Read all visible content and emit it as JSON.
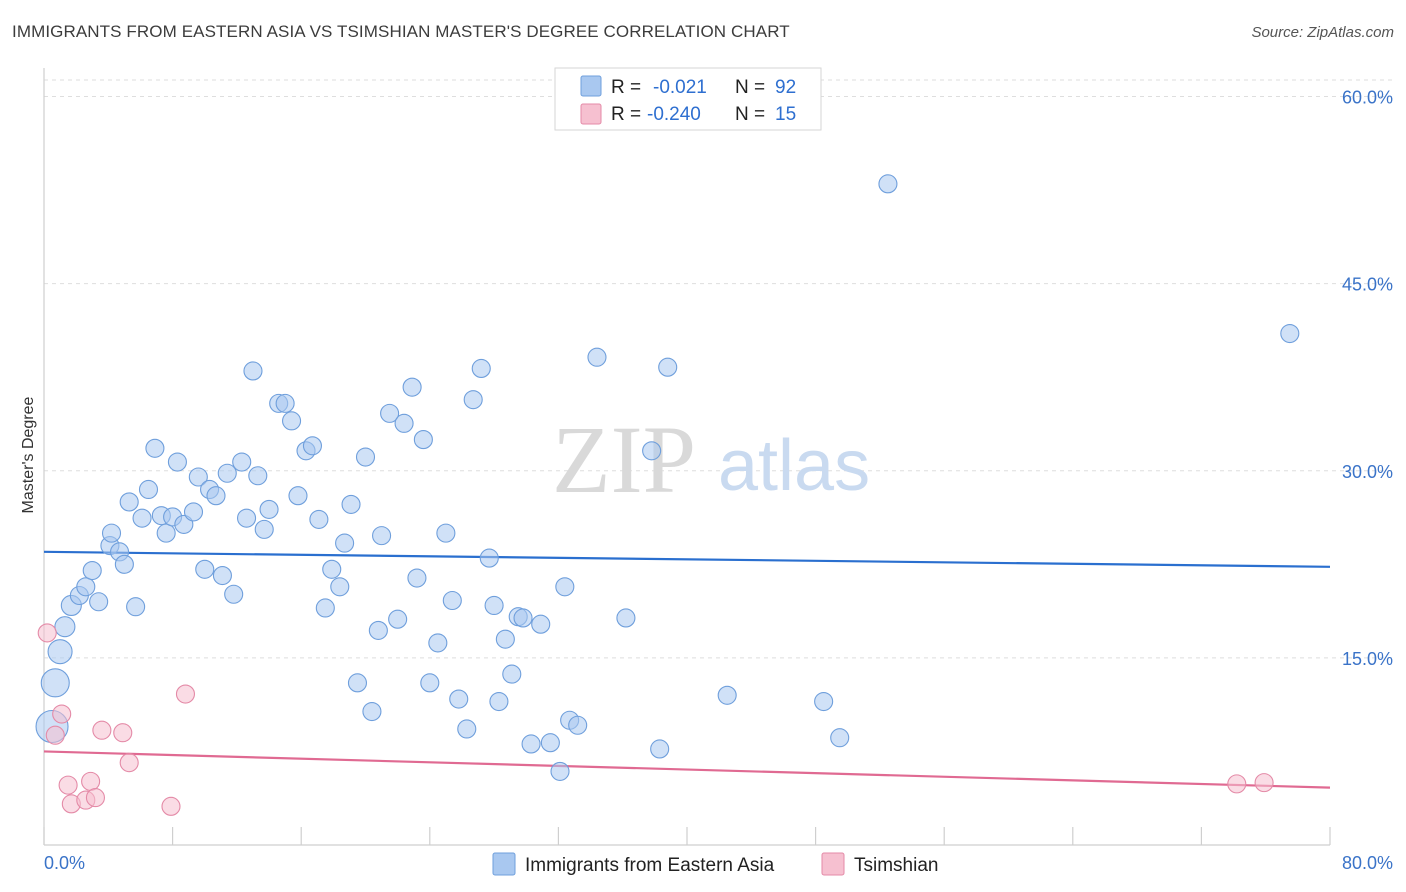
{
  "title": "IMMIGRANTS FROM EASTERN ASIA VS TSIMSHIAN MASTER'S DEGREE CORRELATION CHART",
  "source": "Source: ZipAtlas.com",
  "watermark": {
    "zip": "ZIP",
    "atlas": "atlas"
  },
  "legend_top": [
    {
      "r_label": "R =",
      "r_value": "-0.021",
      "n_label": "N =",
      "n_value": "92",
      "color": "#a9c8f0",
      "stroke": "#6f9fdc"
    },
    {
      "r_label": "R =",
      "r_value": "-0.240",
      "n_label": "N =",
      "n_value": "15",
      "color": "#f6c0d0",
      "stroke": "#e48aa7"
    }
  ],
  "chart_data": {
    "type": "scatter",
    "title": "IMMIGRANTS FROM EASTERN ASIA VS TSIMSHIAN MASTER'S DEGREE CORRELATION CHART",
    "xlabel": "",
    "ylabel": "Master's Degree",
    "xlim": [
      0,
      80
    ],
    "ylim": [
      0,
      60
    ],
    "x_tick_labels": [
      "0.0%",
      "80.0%"
    ],
    "y_ticks": [
      15,
      30,
      45,
      60
    ],
    "y_tick_labels": [
      "15.0%",
      "30.0%",
      "45.0%",
      "60.0%"
    ],
    "grid": true,
    "legend_position": "top-center",
    "series": [
      {
        "name": "Immigrants from Eastern Asia",
        "color": "#a9c8f0",
        "stroke": "#6f9fdc",
        "trend": {
          "x": [
            0,
            80
          ],
          "y": [
            23.5,
            22.3
          ],
          "color": "#2a6fcf"
        },
        "points": [
          [
            0.5,
            9.5,
            16
          ],
          [
            0.7,
            13.0,
            14
          ],
          [
            1.0,
            15.5,
            12
          ],
          [
            1.3,
            17.5,
            10
          ],
          [
            1.7,
            19.2,
            10
          ],
          [
            2.2,
            20.0,
            9
          ],
          [
            2.6,
            20.7,
            9
          ],
          [
            3.0,
            22.0,
            9
          ],
          [
            3.4,
            19.5,
            9
          ],
          [
            4.1,
            24.0,
            9
          ],
          [
            4.2,
            25.0,
            9
          ],
          [
            4.7,
            23.5,
            9
          ],
          [
            5.0,
            22.5,
            9
          ],
          [
            5.3,
            27.5,
            9
          ],
          [
            5.7,
            19.1,
            9
          ],
          [
            6.1,
            26.2,
            9
          ],
          [
            6.5,
            28.5,
            9
          ],
          [
            6.9,
            31.8,
            9
          ],
          [
            7.3,
            26.4,
            9
          ],
          [
            7.6,
            25.0,
            9
          ],
          [
            8.0,
            26.3,
            9
          ],
          [
            8.3,
            30.7,
            9
          ],
          [
            8.7,
            25.7,
            9
          ],
          [
            9.3,
            26.7,
            9
          ],
          [
            9.6,
            29.5,
            9
          ],
          [
            10.0,
            22.1,
            9
          ],
          [
            10.3,
            28.5,
            9
          ],
          [
            10.7,
            28.0,
            9
          ],
          [
            11.1,
            21.6,
            9
          ],
          [
            11.4,
            29.8,
            9
          ],
          [
            11.8,
            20.1,
            9
          ],
          [
            12.3,
            30.7,
            9
          ],
          [
            12.6,
            26.2,
            9
          ],
          [
            13.0,
            38.0,
            9
          ],
          [
            13.3,
            29.6,
            9
          ],
          [
            13.7,
            25.3,
            9
          ],
          [
            14.0,
            26.9,
            9
          ],
          [
            14.6,
            35.4,
            9
          ],
          [
            15.0,
            35.4,
            9
          ],
          [
            15.4,
            34.0,
            9
          ],
          [
            15.8,
            28.0,
            9
          ],
          [
            16.3,
            31.6,
            9
          ],
          [
            16.7,
            32.0,
            9
          ],
          [
            17.1,
            26.1,
            9
          ],
          [
            17.5,
            19.0,
            9
          ],
          [
            17.9,
            22.1,
            9
          ],
          [
            18.4,
            20.7,
            9
          ],
          [
            18.7,
            24.2,
            9
          ],
          [
            19.1,
            27.3,
            9
          ],
          [
            19.5,
            13.0,
            9
          ],
          [
            20.0,
            31.1,
            9
          ],
          [
            20.4,
            10.7,
            9
          ],
          [
            20.8,
            17.2,
            9
          ],
          [
            21.0,
            24.8,
            9
          ],
          [
            21.5,
            34.6,
            9
          ],
          [
            22.0,
            18.1,
            9
          ],
          [
            22.4,
            33.8,
            9
          ],
          [
            22.9,
            36.7,
            9
          ],
          [
            23.2,
            21.4,
            9
          ],
          [
            23.6,
            32.5,
            9
          ],
          [
            24.0,
            13.0,
            9
          ],
          [
            24.5,
            16.2,
            9
          ],
          [
            25.0,
            25.0,
            9
          ],
          [
            25.4,
            19.6,
            9
          ],
          [
            25.8,
            11.7,
            9
          ],
          [
            26.3,
            9.3,
            9
          ],
          [
            26.7,
            35.7,
            9
          ],
          [
            27.2,
            38.2,
            9
          ],
          [
            27.7,
            23.0,
            9
          ],
          [
            28.0,
            19.2,
            9
          ],
          [
            28.3,
            11.5,
            9
          ],
          [
            28.7,
            16.5,
            9
          ],
          [
            29.1,
            13.7,
            9
          ],
          [
            29.5,
            18.3,
            9
          ],
          [
            29.8,
            18.2,
            9
          ],
          [
            30.3,
            8.1,
            9
          ],
          [
            30.9,
            17.7,
            9
          ],
          [
            31.5,
            8.2,
            9
          ],
          [
            32.1,
            5.9,
            9
          ],
          [
            32.4,
            20.7,
            9
          ],
          [
            32.7,
            10.0,
            9
          ],
          [
            33.2,
            9.6,
            9
          ],
          [
            34.4,
            39.1,
            9
          ],
          [
            36.2,
            18.2,
            9
          ],
          [
            37.8,
            31.6,
            9
          ],
          [
            38.3,
            7.7,
            9
          ],
          [
            38.8,
            38.3,
            9
          ],
          [
            42.5,
            12.0,
            9
          ],
          [
            48.5,
            11.5,
            9
          ],
          [
            49.5,
            8.6,
            9
          ],
          [
            52.5,
            53.0,
            9
          ],
          [
            77.5,
            41.0,
            9
          ]
        ]
      },
      {
        "name": "Tsimshian",
        "color": "#f6c0d0",
        "stroke": "#e48aa7",
        "trend": {
          "x": [
            0,
            80
          ],
          "y": [
            7.5,
            4.6
          ],
          "color": "#e06a92"
        },
        "points": [
          [
            0.2,
            17.0,
            9
          ],
          [
            0.7,
            8.8,
            9
          ],
          [
            1.1,
            10.5,
            9
          ],
          [
            1.5,
            4.8,
            9
          ],
          [
            1.7,
            3.3,
            9
          ],
          [
            2.6,
            3.6,
            9
          ],
          [
            2.9,
            5.1,
            9
          ],
          [
            3.2,
            3.8,
            9
          ],
          [
            3.6,
            9.2,
            9
          ],
          [
            4.9,
            9.0,
            9
          ],
          [
            5.3,
            6.6,
            9
          ],
          [
            7.9,
            3.1,
            9
          ],
          [
            8.8,
            12.1,
            9
          ],
          [
            74.2,
            4.9,
            9
          ],
          [
            75.9,
            5.0,
            9
          ]
        ]
      }
    ]
  }
}
